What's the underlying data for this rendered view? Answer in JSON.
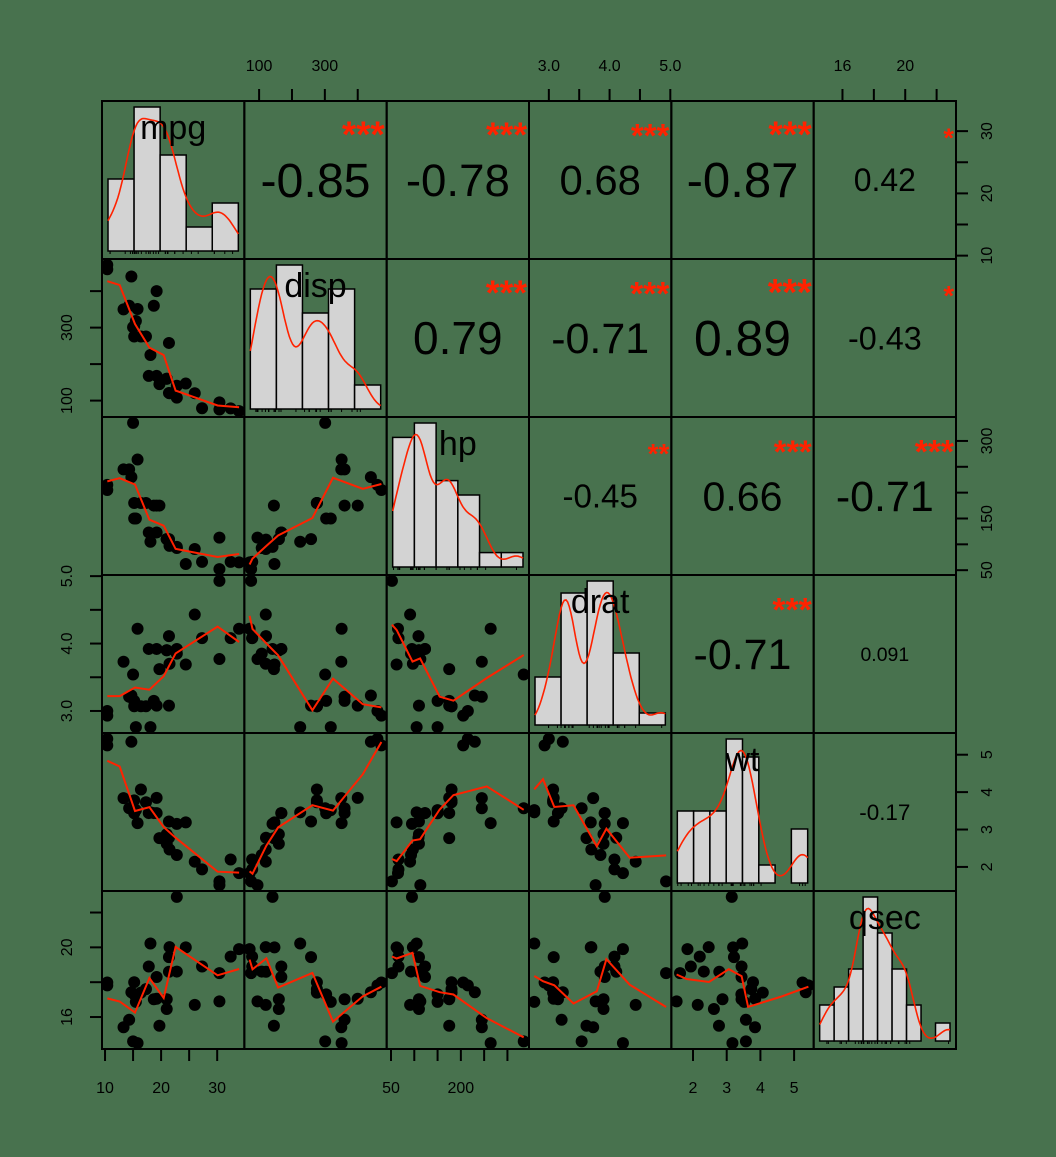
{
  "chart_data": {
    "type": "scatter-matrix",
    "title": "",
    "variables": [
      "mpg",
      "disp",
      "hp",
      "drat",
      "wt",
      "qsec"
    ],
    "ranges": {
      "mpg": [
        10.4,
        33.9
      ],
      "disp": [
        71.1,
        472
      ],
      "hp": [
        52,
        335
      ],
      "drat": [
        2.76,
        4.93
      ],
      "wt": [
        1.513,
        5.424
      ],
      "qsec": [
        14.5,
        22.9
      ]
    },
    "axes": {
      "top": [
        {
          "var": "disp",
          "ticks": [
            100,
            200,
            300,
            400
          ],
          "labels": [
            {
              "v": 100,
              "t": "100"
            },
            {
              "v": 300,
              "t": "300"
            }
          ]
        },
        {
          "var": "drat",
          "ticks": [
            3.0,
            3.5,
            4.0,
            4.5,
            5.0
          ],
          "labels": [
            {
              "v": 3.0,
              "t": "3.0"
            },
            {
              "v": 4.0,
              "t": "4.0"
            },
            {
              "v": 5.0,
              "t": "5.0"
            }
          ]
        },
        {
          "var": "qsec",
          "ticks": [
            16,
            18,
            20,
            22
          ],
          "labels": [
            {
              "v": 16,
              "t": "16"
            },
            {
              "v": 20,
              "t": "20"
            }
          ]
        }
      ],
      "bottom": [
        {
          "var": "mpg",
          "ticks": [
            10,
            15,
            20,
            25,
            30
          ],
          "labels": [
            {
              "v": 10,
              "t": "10"
            },
            {
              "v": 20,
              "t": "20"
            },
            {
              "v": 30,
              "t": "30"
            }
          ]
        },
        {
          "var": "hp",
          "ticks": [
            50,
            100,
            150,
            200,
            250,
            300
          ],
          "labels": [
            {
              "v": 50,
              "t": "50"
            },
            {
              "v": 200,
              "t": "200"
            }
          ]
        },
        {
          "var": "wt",
          "ticks": [
            2,
            3,
            4,
            5
          ],
          "labels": [
            {
              "v": 2,
              "t": "2"
            },
            {
              "v": 3,
              "t": "3"
            },
            {
              "v": 4,
              "t": "4"
            },
            {
              "v": 5,
              "t": "5"
            }
          ]
        }
      ],
      "left": [
        {
          "var": "disp",
          "ticks": [
            100,
            200,
            300,
            400
          ],
          "labels": [
            {
              "v": 100,
              "t": "100"
            },
            {
              "v": 300,
              "t": "300"
            }
          ]
        },
        {
          "var": "drat",
          "ticks": [
            3.0,
            3.5,
            4.0,
            4.5,
            5.0
          ],
          "labels": [
            {
              "v": 3.0,
              "t": "3.0"
            },
            {
              "v": 4.0,
              "t": "4.0"
            },
            {
              "v": 5.0,
              "t": "5.0"
            }
          ]
        },
        {
          "var": "qsec",
          "ticks": [
            16,
            18,
            20,
            22
          ],
          "labels": [
            {
              "v": 16,
              "t": "16"
            },
            {
              "v": 20,
              "t": "20"
            }
          ]
        }
      ],
      "right": [
        {
          "var": "mpg",
          "ticks": [
            10,
            15,
            20,
            25,
            30
          ],
          "labels": [
            {
              "v": 10,
              "t": "10"
            },
            {
              "v": 20,
              "t": "20"
            },
            {
              "v": 30,
              "t": "30"
            }
          ]
        },
        {
          "var": "hp",
          "ticks": [
            50,
            100,
            150,
            200,
            250,
            300
          ],
          "labels": [
            {
              "v": 50,
              "t": "50"
            },
            {
              "v": 150,
              "t": "150"
            },
            {
              "v": 300,
              "t": "300"
            }
          ]
        },
        {
          "var": "wt",
          "ticks": [
            2,
            3,
            4,
            5
          ],
          "labels": [
            {
              "v": 2,
              "t": "2"
            },
            {
              "v": 3,
              "t": "3"
            },
            {
              "v": 4,
              "t": "4"
            },
            {
              "v": 5,
              "t": "5"
            }
          ]
        }
      ]
    },
    "histograms": {
      "mpg": {
        "breaks": [
          10,
          15,
          20,
          25,
          30,
          35
        ],
        "counts": [
          6,
          12,
          8,
          2,
          4
        ]
      },
      "disp": {
        "breaks": [
          50,
          150,
          250,
          350,
          450,
          550
        ],
        "counts": [
          10,
          12,
          8,
          10,
          2
        ],
        "note": "bars read visually"
      },
      "hp": {
        "breaks": [
          50,
          100,
          150,
          200,
          250,
          300,
          350
        ],
        "counts": [
          9,
          10,
          6,
          5,
          1,
          1
        ]
      },
      "drat": {
        "breaks": [
          2.5,
          3.0,
          3.5,
          4.0,
          4.5,
          5.0
        ],
        "counts": [
          4,
          11,
          12,
          6,
          1
        ],
        "note": "bars read visually"
      },
      "wt": {
        "breaks": [
          1.5,
          2.0,
          2.5,
          3.0,
          3.5,
          4.0,
          4.5,
          5.0,
          5.5
        ],
        "counts": [
          4,
          4,
          4,
          8,
          7,
          1,
          0,
          3
        ],
        "note": "bars read visually"
      },
      "qsec": {
        "breaks": [
          14,
          15,
          16,
          17,
          18,
          19,
          20,
          21,
          22,
          23
        ],
        "counts": [
          2,
          3,
          4,
          8,
          6,
          4,
          2,
          0,
          1
        ],
        "note": "bars read visually"
      }
    },
    "correlations": [
      {
        "row": "mpg",
        "col": "disp",
        "r": "-0.85",
        "stars": "***"
      },
      {
        "row": "mpg",
        "col": "hp",
        "r": "-0.78",
        "stars": "***"
      },
      {
        "row": "mpg",
        "col": "drat",
        "r": "0.68",
        "stars": "***"
      },
      {
        "row": "mpg",
        "col": "wt",
        "r": "-0.87",
        "stars": "***"
      },
      {
        "row": "mpg",
        "col": "qsec",
        "r": "0.42",
        "stars": "*"
      },
      {
        "row": "disp",
        "col": "hp",
        "r": "0.79",
        "stars": "***"
      },
      {
        "row": "disp",
        "col": "drat",
        "r": "-0.71",
        "stars": "***"
      },
      {
        "row": "disp",
        "col": "wt",
        "r": "0.89",
        "stars": "***"
      },
      {
        "row": "disp",
        "col": "qsec",
        "r": "-0.43",
        "stars": "*"
      },
      {
        "row": "hp",
        "col": "drat",
        "r": "-0.45",
        "stars": "**"
      },
      {
        "row": "hp",
        "col": "wt",
        "r": "0.66",
        "stars": "***"
      },
      {
        "row": "hp",
        "col": "qsec",
        "r": "-0.71",
        "stars": "***"
      },
      {
        "row": "drat",
        "col": "wt",
        "r": "-0.71",
        "stars": "***"
      },
      {
        "row": "drat",
        "col": "qsec",
        "r": "0.091",
        "stars": ""
      },
      {
        "row": "wt",
        "col": "qsec",
        "r": "-0.17",
        "stars": ""
      }
    ],
    "points": {
      "mpg": [
        21,
        21,
        22.8,
        21.4,
        18.7,
        18.1,
        14.3,
        24.4,
        22.8,
        19.2,
        17.8,
        16.4,
        17.3,
        15.2,
        10.4,
        10.4,
        14.7,
        32.4,
        30.4,
        33.9,
        21.5,
        15.5,
        15.2,
        13.3,
        19.2,
        27.3,
        26,
        30.4,
        15.8,
        19.7,
        15,
        21.4
      ],
      "disp": [
        160,
        160,
        108,
        258,
        360,
        225,
        360,
        146.7,
        140.8,
        167.6,
        167.6,
        275.8,
        275.8,
        275.8,
        472,
        460,
        440,
        78.7,
        75.7,
        71.1,
        120.1,
        318,
        304,
        350,
        400,
        79,
        120.3,
        95.1,
        351,
        145,
        301,
        121
      ],
      "hp": [
        110,
        110,
        93,
        110,
        175,
        105,
        245,
        62,
        95,
        123,
        123,
        180,
        180,
        180,
        205,
        215,
        230,
        66,
        52,
        65,
        97,
        150,
        150,
        245,
        175,
        66,
        91,
        113,
        264,
        175,
        335,
        109
      ],
      "drat": [
        3.9,
        3.9,
        3.85,
        3.08,
        3.15,
        2.76,
        3.21,
        3.69,
        3.92,
        3.92,
        3.92,
        3.07,
        3.07,
        3.07,
        2.93,
        3,
        3.23,
        4.08,
        4.93,
        4.22,
        3.7,
        2.76,
        3.15,
        3.73,
        3.08,
        4.08,
        4.43,
        3.77,
        4.22,
        3.62,
        3.54,
        4.11
      ],
      "wt": [
        2.62,
        2.875,
        2.32,
        3.215,
        3.44,
        3.46,
        3.57,
        3.19,
        3.15,
        3.44,
        3.44,
        4.07,
        3.73,
        3.78,
        5.25,
        5.424,
        5.345,
        2.2,
        1.615,
        1.835,
        2.465,
        3.52,
        3.435,
        3.84,
        3.845,
        1.935,
        2.14,
        1.513,
        3.17,
        2.77,
        3.57,
        2.78
      ],
      "qsec": [
        16.46,
        17.02,
        18.61,
        19.44,
        17.02,
        20.22,
        15.84,
        20,
        22.9,
        18.3,
        18.9,
        17.4,
        17.6,
        18,
        17.98,
        17.82,
        17.42,
        19.47,
        18.52,
        19.9,
        20.01,
        16.87,
        17.3,
        15.41,
        17.05,
        18.9,
        16.7,
        16.9,
        14.5,
        15.5,
        14.6,
        18.6
      ]
    },
    "smooth_color": "#ff2200",
    "star_color": "#ff2200",
    "background": "#48724e",
    "grid": false,
    "legend": null
  }
}
